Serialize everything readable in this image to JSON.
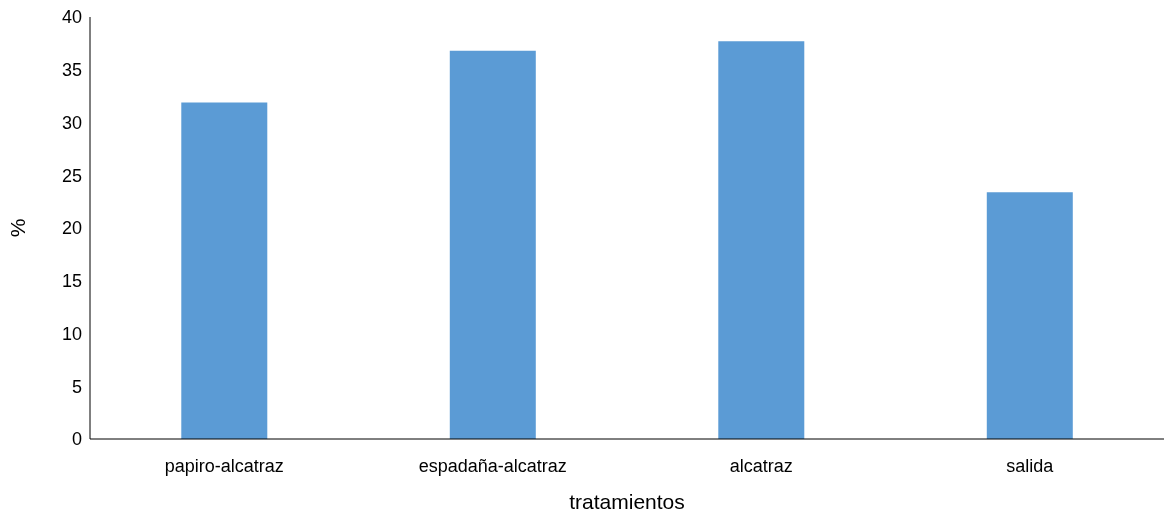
{
  "chart_data": {
    "type": "bar",
    "xlabel": "tratamientos",
    "ylabel": "%",
    "categories": [
      "papiro-alcatraz",
      "espadaña-alcatraz",
      "alcatraz",
      "salida"
    ],
    "values": [
      31.9,
      36.8,
      37.7,
      23.4
    ],
    "color": "#5b9bd5",
    "ylim": [
      0,
      40
    ],
    "yticks": [
      0,
      5,
      10,
      15,
      20,
      25,
      30,
      35,
      40
    ],
    "grid": false,
    "legend": false
  }
}
